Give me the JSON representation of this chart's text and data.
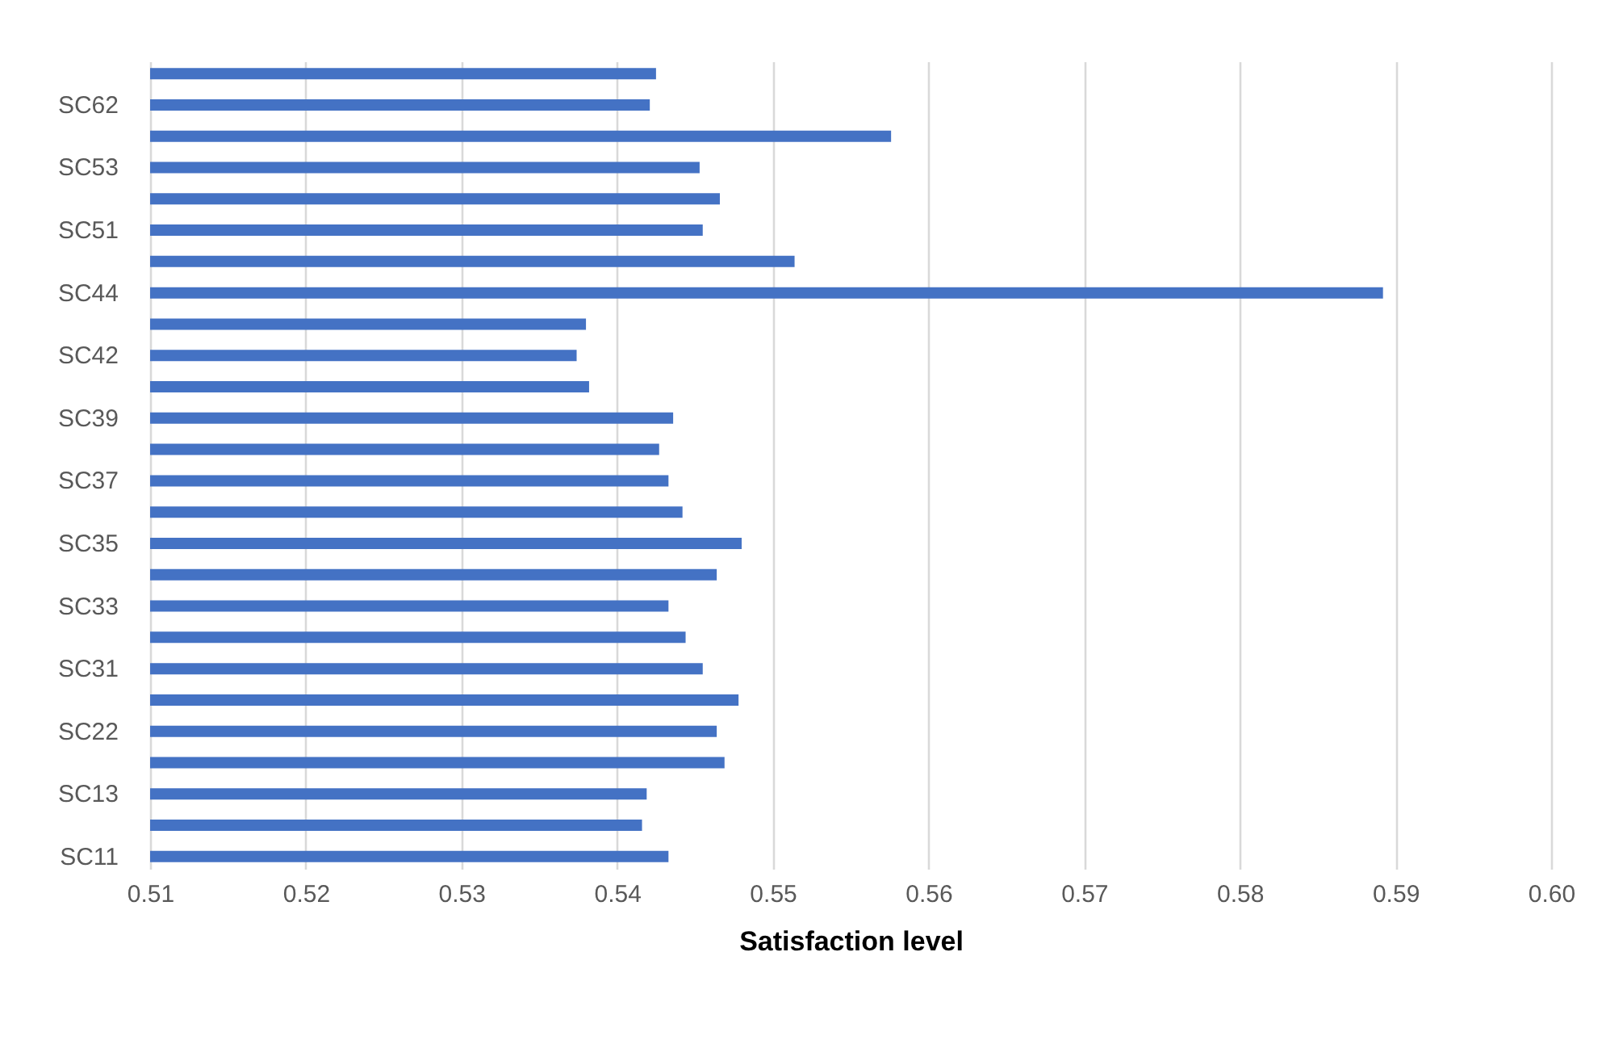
{
  "chart_data": {
    "type": "bar",
    "orientation": "horizontal",
    "xlabel": "Satisfaction level",
    "categories": [
      null,
      "SC62",
      null,
      "SC53",
      null,
      "SC51",
      null,
      "SC44",
      null,
      "SC42",
      null,
      "SC39",
      null,
      "SC37",
      null,
      "SC35",
      null,
      "SC33",
      null,
      "SC31",
      null,
      "SC22",
      null,
      "SC13",
      null,
      "SC11"
    ],
    "values": [
      0.5425,
      0.5421,
      0.5576,
      0.5453,
      0.5466,
      0.5455,
      0.5514,
      0.5892,
      0.538,
      0.5374,
      0.5382,
      0.5436,
      0.5427,
      0.5433,
      0.5442,
      0.548,
      0.5464,
      0.5433,
      0.5444,
      0.5455,
      0.5478,
      0.5464,
      0.5469,
      0.5419,
      0.5416,
      0.5433
    ],
    "color": "#4472c4",
    "xlim": [
      0.51,
      0.6
    ],
    "xticks": [
      0.51,
      0.52,
      0.53,
      0.54,
      0.55,
      0.56,
      0.57,
      0.58,
      0.59,
      {
        "value": 0.6,
        "label": "0.60"
      }
    ],
    "grid": "x"
  }
}
